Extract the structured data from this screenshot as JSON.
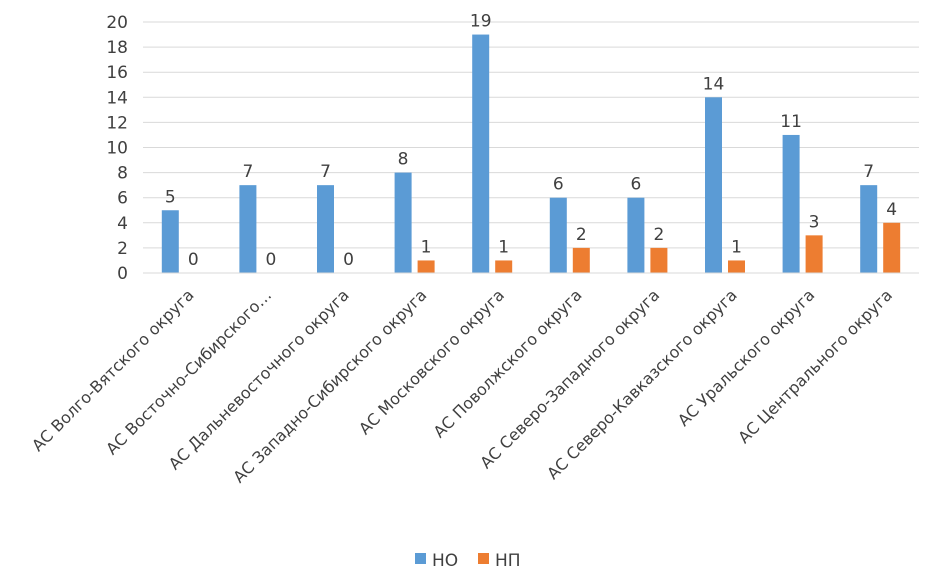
{
  "chart_data": {
    "type": "bar",
    "title": "",
    "xlabel": "",
    "ylabel": "",
    "ylim": [
      0,
      20
    ],
    "yticks": [
      0,
      2,
      4,
      6,
      8,
      10,
      12,
      14,
      16,
      18,
      20
    ],
    "grid": true,
    "legend_position": "bottom",
    "categories": [
      "АС Волго-Вятского округа",
      "АС Восточно-Сибирского…",
      "АС Дальневосточного округа",
      "АС Западно-Сибирского округа",
      "АС Московского округа",
      "АС Поволжского округа",
      "АС Северо-Западного округа",
      "АС Северо-Кавказского округа",
      "АС Уральского округа",
      "АС Центрального округа"
    ],
    "series": [
      {
        "name": "НО",
        "color": "#5B9BD5",
        "values": [
          5,
          7,
          7,
          8,
          19,
          6,
          6,
          14,
          11,
          7
        ]
      },
      {
        "name": "НП",
        "color": "#ED7D31",
        "values": [
          0,
          0,
          0,
          1,
          1,
          2,
          2,
          1,
          3,
          4
        ]
      }
    ]
  }
}
